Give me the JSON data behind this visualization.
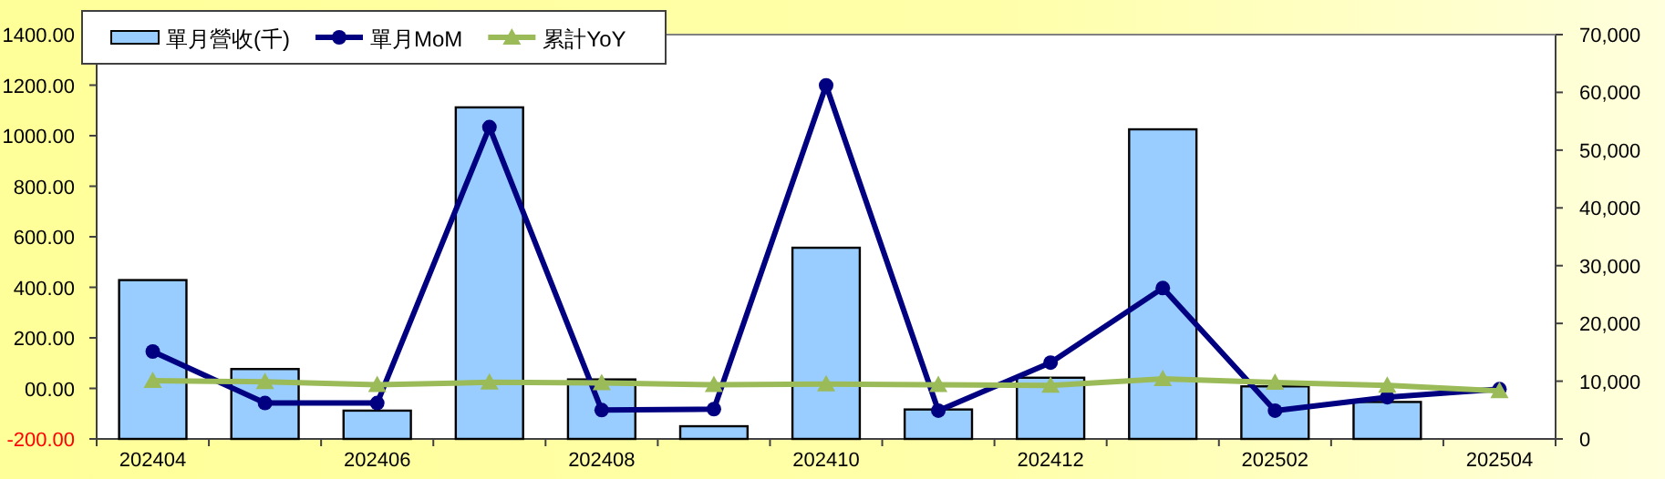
{
  "chart_data": {
    "type": "bar",
    "categories": [
      "202404",
      null,
      "202406",
      null,
      "202408",
      null,
      "202410",
      null,
      "202412",
      null,
      "202502",
      null,
      "202504"
    ],
    "series": [
      {
        "name": "單月營收(千)",
        "axis": "y2",
        "color": "#99ccff",
        "values": [
          27500,
          12100,
          4900,
          57400,
          10300,
          2200,
          33100,
          5100,
          10600,
          53600,
          9100,
          6400,
          null
        ]
      },
      {
        "name": "單月MoM",
        "type": "line",
        "axis": "y",
        "color": "#000080",
        "marker": "circle",
        "values": [
          146,
          -58,
          -58,
          1034,
          -86,
          -82,
          1199,
          -88,
          102,
          397,
          -88,
          -35,
          -3
        ]
      },
      {
        "name": "累計YoY",
        "type": "line",
        "axis": "y",
        "color": "#9bbb59",
        "marker": "triangle",
        "values": [
          31,
          26,
          14,
          24,
          22,
          14,
          17,
          14,
          12,
          38,
          23,
          12,
          -10
        ]
      }
    ],
    "ylim": [
      -200,
      1400
    ],
    "yticks": [
      {
        "value": -200,
        "label": "-200.00"
      },
      {
        "value": 0,
        "label": "00.00"
      },
      {
        "value": 200,
        "label": "200.00"
      },
      {
        "value": 400,
        "label": "400.00"
      },
      {
        "value": 600,
        "label": "600.00"
      },
      {
        "value": 800,
        "label": "800.00"
      },
      {
        "value": 1000,
        "label": "1000.00"
      },
      {
        "value": 1200,
        "label": "1200.00"
      },
      {
        "value": 1400,
        "label": "1400.00"
      }
    ],
    "y2lim": [
      0,
      70000
    ],
    "y2ticks": [
      0,
      {
        "value": 10000,
        "label": "10,000"
      },
      {
        "value": 20000,
        "label": "20,000"
      },
      {
        "value": 30000,
        "label": "30,000"
      },
      {
        "value": 40000,
        "label": "40,000"
      },
      {
        "value": 50000,
        "label": "50,000"
      },
      {
        "value": 60000,
        "label": "60,000"
      },
      {
        "value": 70000,
        "label": "70,000"
      }
    ],
    "legend": "top left"
  }
}
